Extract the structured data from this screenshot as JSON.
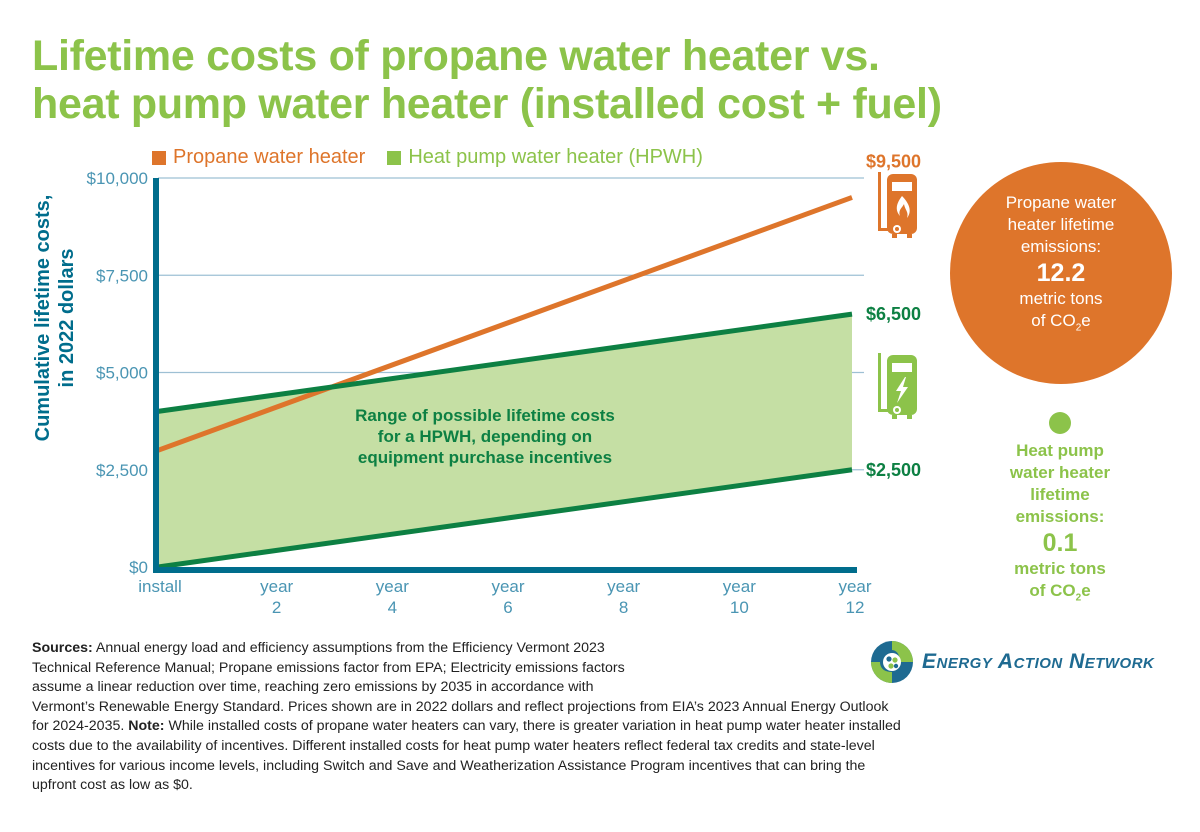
{
  "title": {
    "line1": "Lifetime costs of propane water heater vs.",
    "line2": "heat pump water heater (installed cost + fuel)"
  },
  "colors": {
    "propane": "#de752b",
    "hpwh_legend": "#8cc34a",
    "hpwh_line": "#0d8043",
    "hpwh_fill": "#c5dfa4",
    "axis": "#006d8c",
    "tick_text": "#4a95b3",
    "grid": "#9ec0d4",
    "title": "#8cc34a"
  },
  "legend": {
    "propane": "Propane water heater",
    "hpwh": "Heat pump water heater (HPWH)"
  },
  "chart_data": {
    "type": "line",
    "title": "Lifetime costs of propane water heater vs. heat pump water heater (installed cost + fuel)",
    "xlabel": "",
    "ylabel": "Cumulative lifetime costs, in 2022 dollars",
    "ylabel_lines": [
      "Cumulative lifetime costs,",
      "in 2022 dollars"
    ],
    "x": [
      0,
      12
    ],
    "x_ticks": [
      {
        "value": 0,
        "line1": "install",
        "line2": ""
      },
      {
        "value": 2,
        "line1": "year",
        "line2": "2"
      },
      {
        "value": 4,
        "line1": "year",
        "line2": "4"
      },
      {
        "value": 6,
        "line1": "year",
        "line2": "6"
      },
      {
        "value": 8,
        "line1": "year",
        "line2": "8"
      },
      {
        "value": 10,
        "line1": "year",
        "line2": "10"
      },
      {
        "value": 12,
        "line1": "year",
        "line2": "12"
      }
    ],
    "y_ticks": [
      {
        "value": 0,
        "label": "$0"
      },
      {
        "value": 2500,
        "label": "$2,500"
      },
      {
        "value": 5000,
        "label": "$5,000"
      },
      {
        "value": 7500,
        "label": "$7,500"
      },
      {
        "value": 10000,
        "label": "$10,000"
      }
    ],
    "ylim": [
      0,
      10000
    ],
    "xlim": [
      0,
      12
    ],
    "grid": true,
    "legend_position": "top",
    "series": [
      {
        "name": "Propane water heater",
        "values": [
          3000,
          9500
        ]
      },
      {
        "name": "HPWH upper bound",
        "values": [
          4000,
          6500
        ]
      },
      {
        "name": "HPWH lower bound",
        "values": [
          0,
          2500
        ]
      }
    ],
    "band": {
      "name": "Heat pump water heater (HPWH)",
      "lower": "HPWH lower bound",
      "upper": "HPWH upper bound"
    },
    "end_labels": [
      {
        "series": "Propane water heater",
        "label": "$9,500"
      },
      {
        "series": "HPWH upper bound",
        "label": "$6,500"
      },
      {
        "series": "HPWH lower bound",
        "label": "$2,500"
      }
    ],
    "annotation": [
      "Range of possible lifetime costs",
      "for a HPWH, depending on",
      "equipment purchase incentives"
    ]
  },
  "emissions": {
    "propane": {
      "lines": [
        "Propane water",
        "heater lifetime",
        "emissions:"
      ],
      "value": "12.2",
      "unit_line1": "metric tons",
      "unit_line2_pre": "of CO",
      "unit_sub": "2",
      "unit_line2_post": "e"
    },
    "hpwh": {
      "lines": [
        "Heat pump",
        "water heater",
        "lifetime",
        "emissions:"
      ],
      "value": "0.1",
      "unit_line1": "metric tons",
      "unit_line2_pre": "of CO",
      "unit_sub": "2",
      "unit_line2_post": "e"
    }
  },
  "icons": {
    "propane": "propane-water-heater-icon",
    "hpwh": "heat-pump-water-heater-icon"
  },
  "sources": {
    "sources_label": "Sources:",
    "l1": " Annual energy load and efficiency assumptions from the Efficiency Vermont 2023",
    "l2": "Technical Reference Manual; Propane emissions factor from EPA; Electricity emissions factors",
    "l3": "assume a linear reduction over time, reaching zero emissions by 2035 in accordance with",
    "l4": "Vermont’s Renewable Energy Standard. Prices shown are in 2022 dollars and reflect projections from EIA’s 2023 Annual Energy Outlook",
    "l5a": "for 2024-2035. ",
    "note_label": "Note:",
    "l5b": " While installed costs of propane water heaters can vary, there is greater variation in heat pump water heater installed",
    "l6": "costs due to the availability of incentives. Different installed costs for heat pump water heaters reflect federal tax credits and state-level",
    "l7": "incentives for various income levels, including Switch and Save and Weatherization Assistance Program incentives that can bring the",
    "l8": "upfront cost as low as $0."
  },
  "logo": {
    "text": "Energy Action Network"
  }
}
